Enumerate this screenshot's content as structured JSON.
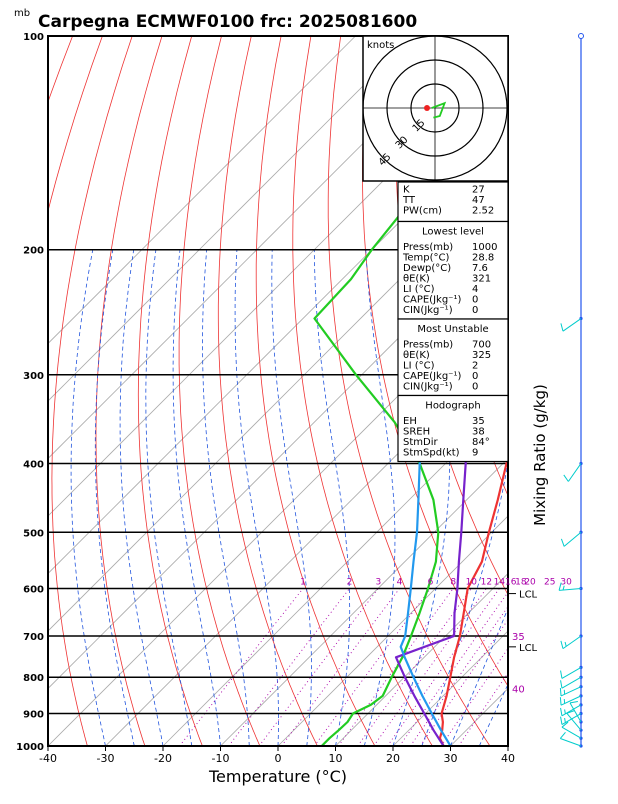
{
  "title": "Carpegna  ECMWF0100  frc: 2025081600",
  "ylabel_unit": "mb",
  "xlabel": "Temperature (°C)",
  "right_axis_label": "Mixing Ratio (g/kg)",
  "hodograph": {
    "units_label": "knots",
    "ring_labels": [
      "15",
      "30",
      "45"
    ],
    "ring_values": [
      15,
      30,
      45
    ]
  },
  "indices_box": [
    {
      "label": "K",
      "value": "27"
    },
    {
      "label": "TT",
      "value": "47"
    },
    {
      "label": "PW(cm)",
      "value": "2.52"
    }
  ],
  "lowest_level": {
    "header": "Lowest level",
    "rows": [
      {
        "label": "Press(mb)",
        "value": "1000"
      },
      {
        "label": "Temp(°C)",
        "value": "28.8"
      },
      {
        "label": "Dewp(°C)",
        "value": "7.6"
      },
      {
        "label": "θE(K)",
        "value": "321"
      },
      {
        "label": "LI (°C)",
        "value": "4"
      },
      {
        "label": "CAPE(Jkg⁻¹)",
        "value": "0"
      },
      {
        "label": "CIN(Jkg⁻¹)",
        "value": "0"
      }
    ]
  },
  "most_unstable": {
    "header": "Most Unstable",
    "rows": [
      {
        "label": "Press(mb)",
        "value": "700"
      },
      {
        "label": "θE(K)",
        "value": "325"
      },
      {
        "label": "LI (°C)",
        "value": "2"
      },
      {
        "label": "CAPE(Jkg⁻¹)",
        "value": "0"
      },
      {
        "label": "CIN(Jkg⁻¹)",
        "value": "0"
      }
    ]
  },
  "hodograph_box": {
    "header": "Hodograph",
    "rows": [
      {
        "label": "EH",
        "value": "35"
      },
      {
        "label": "SREH",
        "value": "38"
      },
      {
        "label": "StmDir",
        "value": "84°"
      },
      {
        "label": "StmSpd(kt)",
        "value": "9"
      }
    ]
  },
  "lcl_labels": [
    {
      "text": "LCL",
      "pressure": 610
    },
    {
      "text": "LCL",
      "pressure": 725
    }
  ],
  "chart_data": {
    "type": "line",
    "subtype": "skew-T log-P",
    "x_axis": {
      "label": "Temperature (°C)",
      "range": [
        -40,
        40
      ],
      "ticks": [
        -40,
        -30,
        -20,
        -10,
        0,
        10,
        20,
        30,
        40
      ]
    },
    "y_axis": {
      "label": "mb",
      "scale": "log",
      "range": [
        1000,
        100
      ],
      "ticks": [
        100,
        200,
        300,
        400,
        500,
        600,
        700,
        800,
        900,
        1000
      ]
    },
    "mixing_ratio_labels": [
      "1",
      "2",
      "3",
      "4",
      "6",
      "8",
      "10",
      "12",
      "14",
      "16",
      "18",
      "20",
      "25",
      "30"
    ],
    "mixing_ratio_values": [
      1,
      2,
      3,
      4,
      6,
      8,
      10,
      12,
      14,
      16,
      18,
      20,
      25,
      30
    ],
    "theta_e_labels": [
      {
        "text": "35",
        "pressure": 700
      },
      {
        "text": "40",
        "pressure": 830
      }
    ],
    "colors": {
      "temperature": "#ee3333",
      "dewpoint": "#22cc22",
      "parcel": "#7722cc",
      "virtual_parcel": "#2299ee",
      "dry_adiabats": "#ee3333",
      "moist_adiabats": "#2255dd",
      "mixing_ratio": "#aa00aa",
      "skew_isotherms": "#aaaaaa",
      "wind_barbs": "#00cccc",
      "pressure_axis": "#2255ee",
      "mixing_label": "#aa00aa"
    },
    "series": [
      {
        "key": "temperature",
        "points": [
          [
            1000,
            28.8
          ],
          [
            975,
            26.8
          ],
          [
            950,
            25.8
          ],
          [
            925,
            24.5
          ],
          [
            900,
            22.8
          ],
          [
            850,
            20.6
          ],
          [
            800,
            18.0
          ],
          [
            750,
            15.2
          ],
          [
            700,
            12.5
          ],
          [
            650,
            9.2
          ],
          [
            600,
            5.6
          ],
          [
            550,
            3.4
          ],
          [
            500,
            -0.5
          ],
          [
            450,
            -4.6
          ],
          [
            400,
            -9.4
          ],
          [
            350,
            -14.8
          ],
          [
            300,
            -21.6
          ],
          [
            250,
            -31.0
          ],
          [
            200,
            -39.0
          ],
          [
            150,
            -48.0
          ],
          [
            100,
            -58.0
          ]
        ]
      },
      {
        "key": "dewpoint",
        "points": [
          [
            1000,
            7.6
          ],
          [
            975,
            7.6
          ],
          [
            950,
            7.8
          ],
          [
            925,
            7.9
          ],
          [
            900,
            7.4
          ],
          [
            875,
            9.0
          ],
          [
            850,
            9.5
          ],
          [
            800,
            7.8
          ],
          [
            750,
            6.2
          ],
          [
            700,
            4.0
          ],
          [
            650,
            1.5
          ],
          [
            600,
            -1.3
          ],
          [
            550,
            -4.6
          ],
          [
            500,
            -9.3
          ],
          [
            450,
            -15.8
          ],
          [
            400,
            -24.5
          ],
          [
            350,
            -36.0
          ],
          [
            300,
            -51.0
          ],
          [
            250,
            -68.0
          ],
          [
            220,
            -68.5
          ],
          [
            200,
            -70.0
          ],
          [
            150,
            -73.0
          ],
          [
            100,
            -76.0
          ]
        ]
      },
      {
        "key": "parcel",
        "points": [
          [
            1000,
            28.8
          ],
          [
            950,
            24.3
          ],
          [
            900,
            19.8
          ],
          [
            850,
            15.0
          ],
          [
            800,
            10.1
          ],
          [
            750,
            5.1
          ],
          [
            700,
            11.5
          ],
          [
            650,
            7.6
          ],
          [
            600,
            3.8
          ],
          [
            550,
            -0.6
          ],
          [
            500,
            -5.3
          ],
          [
            450,
            -10.6
          ],
          [
            400,
            -16.5
          ],
          [
            350,
            -23.5
          ],
          [
            300,
            -32.0
          ],
          [
            250,
            -42.0
          ],
          [
            200,
            -54.0
          ],
          [
            150,
            -68.0
          ],
          [
            120,
            -77.0
          ],
          [
            100,
            -83.0
          ]
        ]
      },
      {
        "key": "virtual_parcel",
        "points": [
          [
            1000,
            30.0
          ],
          [
            950,
            25.6
          ],
          [
            900,
            21.1
          ],
          [
            850,
            16.4
          ],
          [
            800,
            11.6
          ],
          [
            750,
            6.6
          ],
          [
            725,
            4.1
          ],
          [
            700,
            3.0
          ],
          [
            650,
            -0.5
          ],
          [
            600,
            -4.3
          ],
          [
            550,
            -8.5
          ],
          [
            500,
            -13.0
          ],
          [
            450,
            -18.4
          ],
          [
            400,
            -24.5
          ],
          [
            350,
            -31.5
          ],
          [
            300,
            -39.5
          ],
          [
            250,
            -49.0
          ],
          [
            200,
            -59.5
          ],
          [
            150,
            -72.0
          ],
          [
            120,
            -80.0
          ],
          [
            100,
            -86.0
          ]
        ]
      }
    ],
    "wind_barbs": [
      {
        "pressure": 1000,
        "speed_kt": 10,
        "dir_deg": 290
      },
      {
        "pressure": 975,
        "speed_kt": 10,
        "dir_deg": 300
      },
      {
        "pressure": 950,
        "speed_kt": 10,
        "dir_deg": 320
      },
      {
        "pressure": 925,
        "speed_kt": 10,
        "dir_deg": 330
      },
      {
        "pressure": 900,
        "speed_kt": 15,
        "dir_deg": 240
      },
      {
        "pressure": 875,
        "speed_kt": 15,
        "dir_deg": 240
      },
      {
        "pressure": 850,
        "speed_kt": 15,
        "dir_deg": 245
      },
      {
        "pressure": 825,
        "speed_kt": 15,
        "dir_deg": 245
      },
      {
        "pressure": 800,
        "speed_kt": 10,
        "dir_deg": 240
      },
      {
        "pressure": 775,
        "speed_kt": 10,
        "dir_deg": 240
      },
      {
        "pressure": 700,
        "speed_kt": 15,
        "dir_deg": 235
      },
      {
        "pressure": 600,
        "speed_kt": 15,
        "dir_deg": 265
      },
      {
        "pressure": 500,
        "speed_kt": 10,
        "dir_deg": 230
      },
      {
        "pressure": 400,
        "speed_kt": 10,
        "dir_deg": 215
      },
      {
        "pressure": 250,
        "speed_kt": 10,
        "dir_deg": 235
      }
    ],
    "hodograph_points": [
      [
        -2,
        0
      ],
      [
        6,
        3
      ],
      [
        3,
        -5
      ],
      [
        -1,
        -6
      ]
    ]
  }
}
